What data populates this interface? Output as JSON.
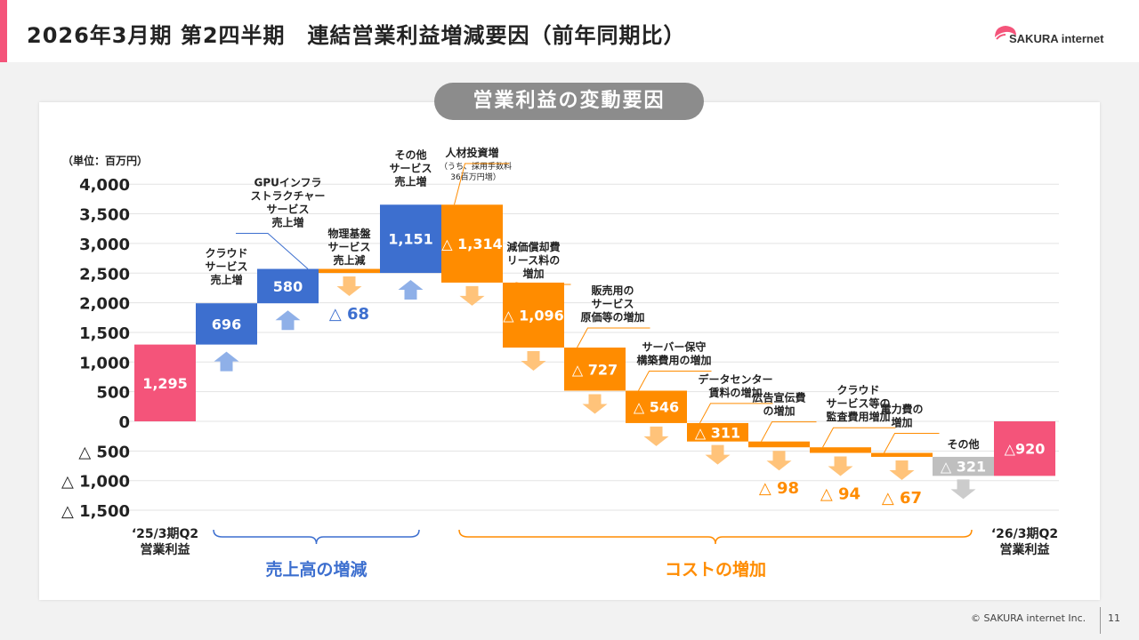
{
  "header": {
    "title": "2026年3月期 第2四半期　連結営業利益増減要因（前年同期比）",
    "logo_text": "SAKURA internet",
    "accent_color": "#f4547a"
  },
  "section_title": "営業利益の変動要因",
  "chart_data": {
    "type": "bar",
    "subtype": "waterfall",
    "unit_label": "（単位：百万円）",
    "ylim": [
      -1500,
      4000
    ],
    "y_ticks": [
      {
        "value": 4000,
        "label": "4,000"
      },
      {
        "value": 3500,
        "label": "3,500"
      },
      {
        "value": 3000,
        "label": "3,000"
      },
      {
        "value": 2500,
        "label": "2,500"
      },
      {
        "value": 2000,
        "label": "2,000"
      },
      {
        "value": 1500,
        "label": "1,500"
      },
      {
        "value": 1000,
        "label": "1,000"
      },
      {
        "value": 500,
        "label": "500"
      },
      {
        "value": 0,
        "label": "0"
      },
      {
        "value": -500,
        "label": "△ 500"
      },
      {
        "value": -1000,
        "label": "△ 1,000"
      },
      {
        "value": -1500,
        "label": "△ 1,500"
      }
    ],
    "colors": {
      "start": "#f4547a",
      "increase": "#3d6fcf",
      "decrease": "#ff8c00",
      "other": "#bfbfbf",
      "end": "#f4547a",
      "increase_arrow": "#8fb0e8",
      "decrease_arrow": "#ffc37a",
      "other_arrow": "#cccccc"
    },
    "items": [
      {
        "id": "start",
        "kind": "start",
        "value": 1295,
        "value_label": "1,295",
        "category_label": [
          "‘25/3期Q2",
          "営業利益"
        ]
      },
      {
        "id": "cloud",
        "kind": "increase",
        "value": 696,
        "value_label": "696",
        "desc": [
          "クラウド",
          "サービス",
          "売上増"
        ]
      },
      {
        "id": "gpu",
        "kind": "increase",
        "value": 580,
        "value_label": "580",
        "desc": [
          "GPUインフラ",
          "ストラクチャー",
          "サービス",
          "売上増"
        ]
      },
      {
        "id": "physical",
        "kind": "decrease",
        "value": -68,
        "value_label": "△ 68",
        "desc": [
          "物理基盤",
          "サービス",
          "売上減"
        ]
      },
      {
        "id": "other_svc",
        "kind": "increase",
        "value": 1151,
        "value_label": "1,151",
        "desc": [
          "その他",
          "サービス",
          "売上増"
        ]
      },
      {
        "id": "personnel",
        "kind": "decrease",
        "value": -1314,
        "value_label": "△ 1,314",
        "desc": [
          "人材投資増"
        ],
        "desc_note": [
          "（うち、採用手数料",
          "36百万円増）"
        ]
      },
      {
        "id": "depreciation",
        "kind": "decrease",
        "value": -1096,
        "value_label": "△ 1,096",
        "desc": [
          "減価償却費",
          "リース料の",
          "増加"
        ]
      },
      {
        "id": "sales_cost",
        "kind": "decrease",
        "value": -727,
        "value_label": "△ 727",
        "desc": [
          "販売用の",
          "サービス",
          "原価等の増加"
        ]
      },
      {
        "id": "server",
        "kind": "decrease",
        "value": -546,
        "value_label": "△ 546",
        "desc": [
          "サーバー保守",
          "構築費用の増加"
        ]
      },
      {
        "id": "dc",
        "kind": "decrease",
        "value": -311,
        "value_label": "△ 311",
        "desc": [
          "データセンター",
          "賃料の増加"
        ]
      },
      {
        "id": "ad",
        "kind": "decrease",
        "value": -98,
        "value_label": "△ 98",
        "desc": [
          "広告宣伝費",
          "の増加"
        ]
      },
      {
        "id": "cloud_cost",
        "kind": "decrease",
        "value": -94,
        "value_label": "△ 94",
        "desc": [
          "クラウド",
          "サービス等の",
          "監査費用増加"
        ]
      },
      {
        "id": "power",
        "kind": "decrease",
        "value": -67,
        "value_label": "△ 67",
        "desc": [
          "電力費の",
          "増加"
        ]
      },
      {
        "id": "others",
        "kind": "other",
        "value": -321,
        "value_label": "△ 321",
        "desc": [
          "その他"
        ]
      },
      {
        "id": "end",
        "kind": "end",
        "value": -920,
        "value_label": "△920",
        "category_label": [
          "‘26/3期Q2",
          "営業利益"
        ]
      }
    ],
    "groups": [
      {
        "label": "売上高の増減",
        "from": 1,
        "to": 4,
        "color": "#3d6fcf"
      },
      {
        "label": "コストの増加",
        "from": 5,
        "to": 13,
        "color": "#ff8c00"
      }
    ]
  },
  "footer": {
    "copyright": "© SAKURA internet Inc.",
    "page": "11"
  }
}
